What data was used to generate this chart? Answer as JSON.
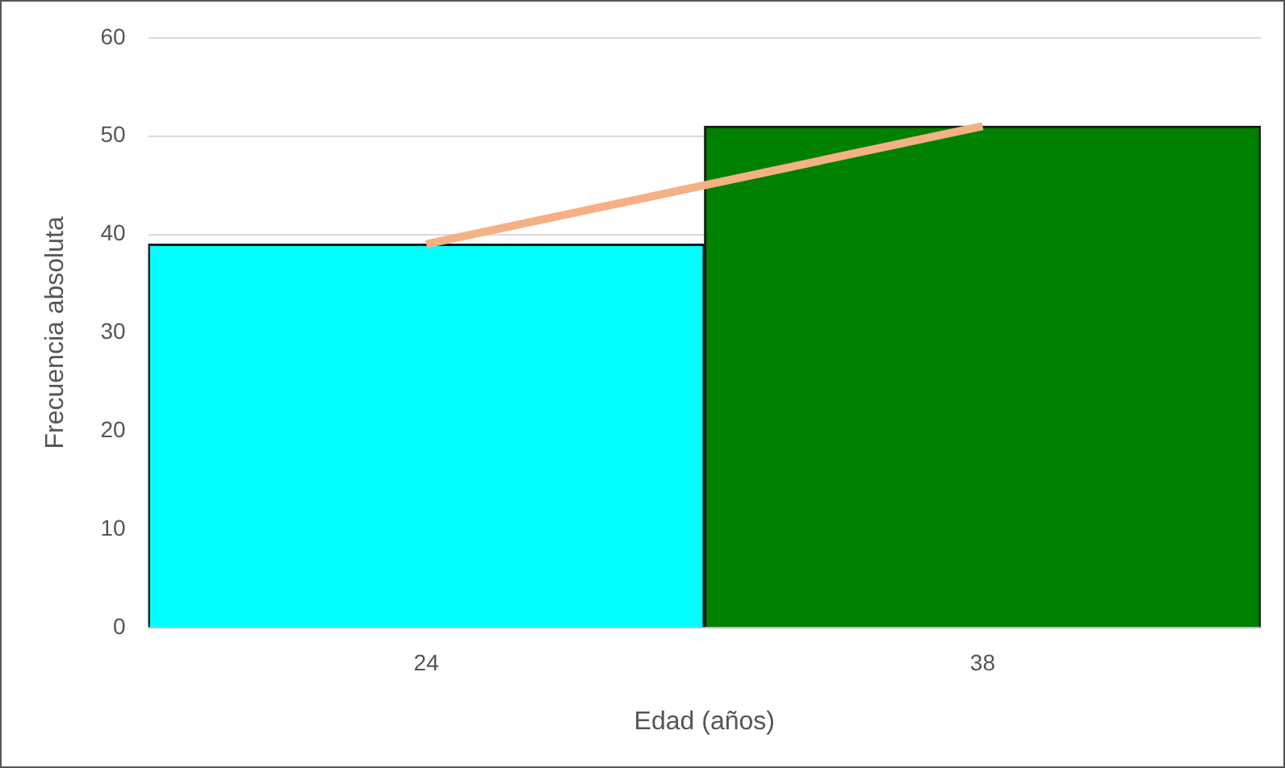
{
  "chart_data": {
    "type": "bar",
    "xlabel": "Edad (años)",
    "ylabel": "Frecuencia absoluta",
    "categories": [
      "24",
      "38"
    ],
    "series": [
      {
        "colors": [
          "#00ffff",
          "#008000"
        ],
        "values": [
          39,
          51
        ]
      },
      {
        "type": "line",
        "color": "#f4b183",
        "values": [
          39,
          51
        ]
      }
    ],
    "ylim": [
      0,
      60
    ],
    "yticks": [
      0,
      10,
      20,
      30,
      40,
      50,
      60
    ],
    "grid": "y",
    "marker": "none"
  }
}
